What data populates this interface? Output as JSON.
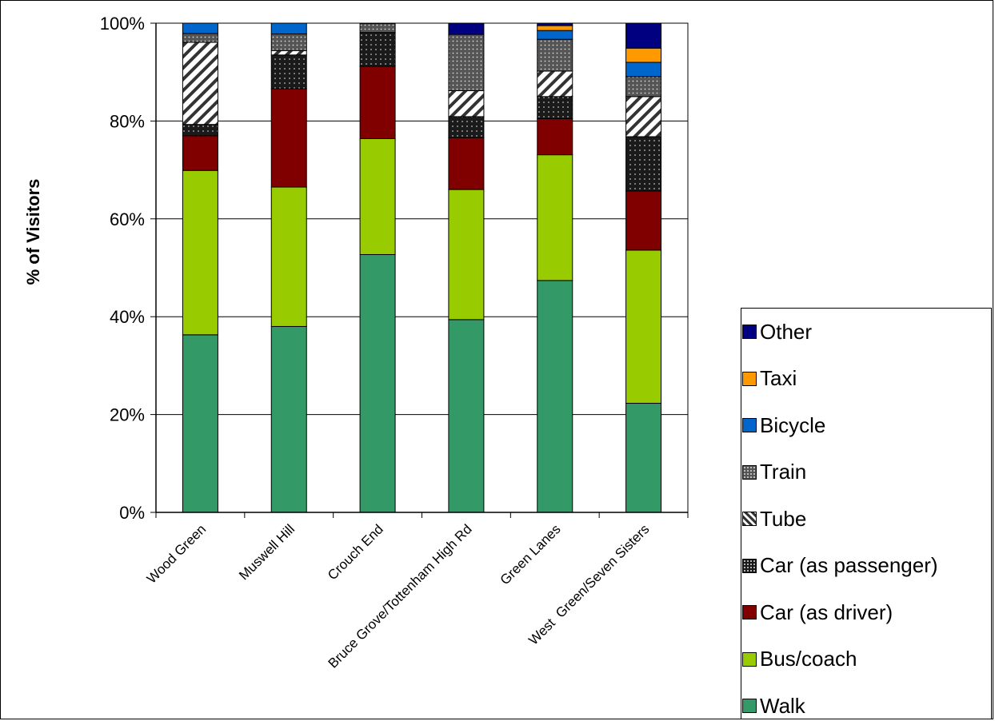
{
  "chart_data": {
    "type": "bar",
    "stacked": true,
    "title": "",
    "xlabel": "",
    "ylabel": "% of Visitors",
    "ylim": [
      0,
      100
    ],
    "yticks": [
      "0%",
      "20%",
      "40%",
      "60%",
      "80%",
      "100%"
    ],
    "grid": true,
    "legend_position": "bottom-right",
    "categories": [
      "Wood Green",
      "Muswell Hill",
      "Crouch End",
      "Bruce Grove/Tottenham High Rd",
      "Green Lanes",
      "West  Green/Seven Sisters"
    ],
    "series": [
      {
        "name": "Walk",
        "color": "#339966",
        "pattern": "solid",
        "values": [
          36.3,
          38.0,
          52.7,
          39.4,
          47.4,
          22.3
        ]
      },
      {
        "name": "Bus/coach",
        "color": "#99CC00",
        "pattern": "solid",
        "values": [
          33.6,
          28.5,
          23.7,
          26.6,
          25.7,
          31.3
        ]
      },
      {
        "name": "Car (as driver)",
        "color": "#800000",
        "pattern": "solid",
        "values": [
          7.1,
          20.1,
          14.8,
          10.6,
          7.4,
          12.1
        ]
      },
      {
        "name": "Car (as passenger)",
        "color": "#222222",
        "pattern": "dots",
        "values": [
          2.3,
          6.9,
          6.9,
          4.3,
          4.5,
          11.1
        ]
      },
      {
        "name": "Tube",
        "color": "#ffffff",
        "pattern": "hatch",
        "values": [
          16.8,
          0.9,
          0.0,
          5.3,
          5.2,
          8.2
        ]
      },
      {
        "name": "Train",
        "color": "#555555",
        "pattern": "dots",
        "values": [
          1.8,
          3.4,
          1.8,
          11.5,
          6.5,
          4.1
        ]
      },
      {
        "name": "Bicycle",
        "color": "#0066CC",
        "pattern": "solid",
        "values": [
          2.1,
          2.2,
          0.0,
          0.0,
          1.8,
          2.9
        ]
      },
      {
        "name": "Taxi",
        "color": "#FF9900",
        "pattern": "solid",
        "values": [
          0.0,
          0.0,
          0.0,
          0.0,
          1.0,
          2.9
        ]
      },
      {
        "name": "Other",
        "color": "#000080",
        "pattern": "solid",
        "values": [
          0.0,
          0.0,
          0.0,
          2.3,
          0.5,
          5.1
        ]
      }
    ]
  }
}
